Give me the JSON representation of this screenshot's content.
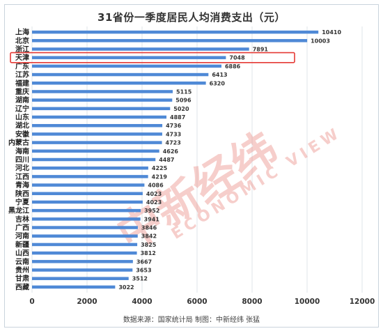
{
  "title": "31省份一季度居民人均消费支出（元）",
  "source": "数据来源：国家统计局  制图：中新经纬 张猛",
  "watermark": {
    "main": "中新经纬",
    "sub": "ECONOMIC VIEW"
  },
  "colors": {
    "bar": "#4f89d6",
    "highlight": "#e53935",
    "grid": "#dfe4ea",
    "watermark": "#e8766c"
  },
  "chart_data": {
    "type": "bar",
    "orientation": "horizontal",
    "title": "31省份一季度居民人均消费支出（元）",
    "categories": [
      "上海",
      "北京",
      "浙江",
      "天津",
      "广东",
      "江苏",
      "福建",
      "重庆",
      "湖南",
      "辽宁",
      "山东",
      "湖北",
      "安徽",
      "内蒙古",
      "海南",
      "四川",
      "河北",
      "江西",
      "青海",
      "陕西",
      "宁夏",
      "黑龙江",
      "吉林",
      "广西",
      "河南",
      "新疆",
      "山西",
      "云南",
      "贵州",
      "甘肃",
      "西藏"
    ],
    "values": [
      10410,
      10003,
      7891,
      7048,
      6886,
      6413,
      6320,
      5115,
      5096,
      5020,
      4887,
      4736,
      4733,
      4723,
      4626,
      4487,
      4225,
      4219,
      4086,
      4023,
      4023,
      3952,
      3941,
      3846,
      3842,
      3825,
      3812,
      3667,
      3653,
      3512,
      3022
    ],
    "highlighted": "天津",
    "xlim": [
      0,
      12000
    ],
    "xticks": [
      0,
      2000,
      4000,
      6000,
      8000,
      10000,
      12000
    ],
    "grid": true,
    "legend": "none"
  }
}
